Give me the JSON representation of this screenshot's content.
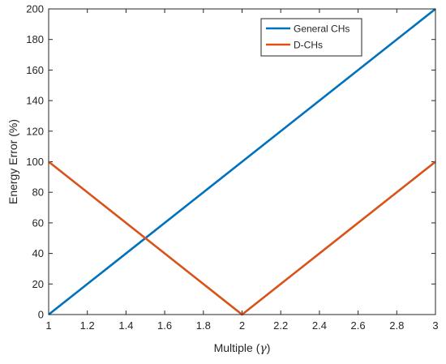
{
  "chart_data": {
    "type": "line",
    "title": "",
    "xlabel_prefix": "Multiple (",
    "xlabel_symbol": "γ",
    "xlabel_suffix": ")",
    "ylabel": "Energy Error (%)",
    "xlim": [
      1,
      3
    ],
    "ylim": [
      0,
      200
    ],
    "x_ticks": [
      1,
      1.2,
      1.4,
      1.6,
      1.8,
      2,
      2.2,
      2.4,
      2.6,
      2.8,
      3
    ],
    "x_tick_labels": [
      "1",
      "1.2",
      "1.4",
      "1.6",
      "1.8",
      "2",
      "2.2",
      "2.4",
      "2.6",
      "2.8",
      "3"
    ],
    "y_ticks": [
      0,
      20,
      40,
      60,
      80,
      100,
      120,
      140,
      160,
      180,
      200
    ],
    "y_tick_labels": [
      "0",
      "20",
      "40",
      "60",
      "80",
      "100",
      "120",
      "140",
      "160",
      "180",
      "200"
    ],
    "grid": false,
    "legend_position": "top-right",
    "series": [
      {
        "name": "General CHs",
        "color": "#0072BD",
        "x": [
          1,
          2,
          3
        ],
        "y": [
          0,
          100,
          200
        ]
      },
      {
        "name": "D-CHs",
        "color": "#D95319",
        "x": [
          1,
          2,
          3
        ],
        "y": [
          100,
          0,
          100
        ]
      }
    ]
  }
}
